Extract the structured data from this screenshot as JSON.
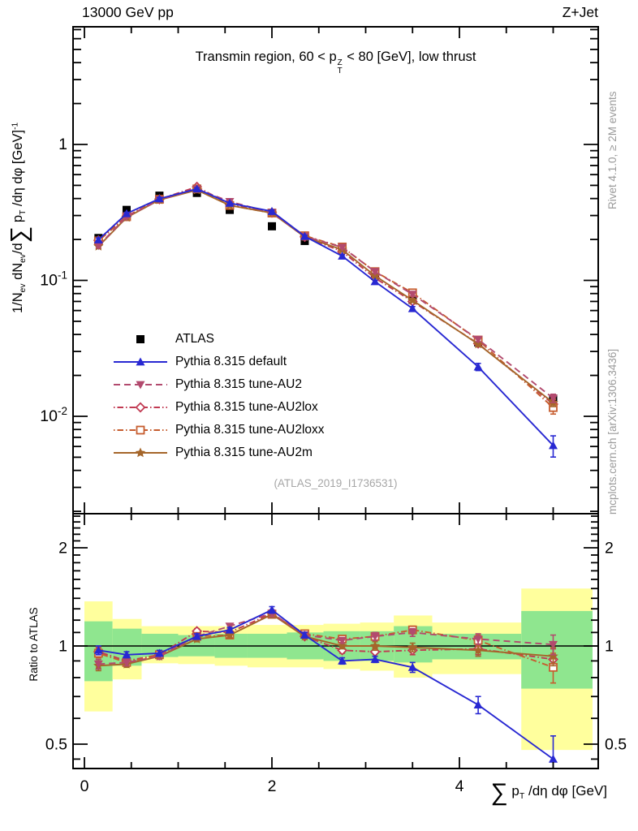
{
  "chart_data": {
    "type": "line",
    "title_text": "Transmin region, 60 < pTZ < 80 [GeV], low thrust",
    "header_left": "13000 GeV pp",
    "header_right": "Z+Jet",
    "watermark": "(ATLAS_2019_I1736531)",
    "rivet_credit": "Rivet 4.1.0, ≥ 2M events",
    "mcplots_credit": "mcplots.cern.ch [arXiv:1306.3436]",
    "ylabel_text": "1/N_ev dN_ev/d∑ p_T /dη dφ  [GeV]^-1",
    "xlabel_text": "∑ p_T /dη dφ [GeV]",
    "ratio_ylabel": "Ratio to ATLAS",
    "labels": {
      "title_tokens": [
        {
          "t": "Transmin region, 60 < p"
        },
        {
          "stack_top": "Z",
          "stack_bottom": "T"
        },
        {
          "t": " < 80 [GeV], low thrust"
        }
      ],
      "ylabel_tokens": [
        {
          "t": "1/N"
        },
        {
          "sub": "ev"
        },
        {
          "t": " dN"
        },
        {
          "sub": "ev"
        },
        {
          "t": "/d"
        },
        {
          "big": "∑"
        },
        {
          "t": " p"
        },
        {
          "sub": "T"
        },
        {
          "t": " /dη dφ  [GeV]"
        },
        {
          "sup": "-1"
        }
      ],
      "xlabel_tokens": [
        {
          "big": "∑"
        },
        {
          "t": " p"
        },
        {
          "sub": "T"
        },
        {
          "t": " /dη dφ [GeV]"
        }
      ]
    },
    "axes": {
      "x_range": [
        -0.12,
        5.48
      ],
      "x_ticks_major": [
        0,
        2,
        4
      ],
      "x_minor_step": 0.5,
      "y_main_range": [
        0.0019,
        7.35
      ],
      "y_main_ticks": [
        1,
        0.1,
        0.01
      ],
      "y_ratio_range": [
        0.42,
        2.54
      ],
      "y_ratio_ticks": [
        2,
        1,
        0.5
      ],
      "y_ratio_minor": [
        0.45,
        0.6,
        0.7,
        0.8,
        0.9,
        1.1,
        1.2,
        1.3,
        1.4,
        1.5,
        1.6,
        1.7,
        1.8,
        1.9,
        2.1,
        2.2,
        2.3,
        2.4,
        2.5
      ],
      "grid": false
    },
    "band_colors": {
      "yellow": "#ffff9d",
      "green": "#8fe68f"
    },
    "x": [
      0.15,
      0.45,
      0.8,
      1.2,
      1.55,
      2.0,
      2.35,
      2.75,
      3.1,
      3.5,
      4.2,
      5.0
    ],
    "series": [
      {
        "id": "atlas",
        "label": "ATLAS",
        "color": "#000000",
        "marker": "square-filled",
        "line": "none",
        "err_rel": 0.04,
        "values": [
          0.205,
          0.33,
          0.42,
          0.44,
          0.33,
          0.25,
          0.195,
          0.168,
          0.108,
          0.072,
          0.035,
          0.0135
        ],
        "ratio": null,
        "ratio_err": null
      },
      {
        "id": "default",
        "label": "Pythia 8.315 default",
        "color": "#2828d2",
        "marker": "triangle-up-filled",
        "line": "solid",
        "values": [
          0.199,
          0.31,
          0.399,
          0.471,
          0.37,
          0.322,
          0.211,
          0.151,
          0.098,
          0.062,
          0.0231,
          0.0061
        ],
        "ratio": [
          0.97,
          0.94,
          0.95,
          1.07,
          1.12,
          1.29,
          1.08,
          0.9,
          0.91,
          0.86,
          0.66,
          0.45
        ],
        "ratio_err": [
          0.03,
          0.02,
          0.02,
          0.02,
          0.02,
          0.03,
          0.02,
          0.02,
          0.02,
          0.03,
          0.04,
          0.08
        ]
      },
      {
        "id": "au2",
        "label": "Pythia 8.315 tune-AU2",
        "color": "#b24a6e",
        "marker": "triangle-down-filled",
        "line": "dashed",
        "values": [
          0.18,
          0.294,
          0.391,
          0.471,
          0.38,
          0.315,
          0.211,
          0.175,
          0.116,
          0.079,
          0.0368,
          0.0136
        ],
        "ratio": [
          0.88,
          0.89,
          0.93,
          1.07,
          1.15,
          1.26,
          1.08,
          1.04,
          1.07,
          1.1,
          1.05,
          1.01
        ],
        "ratio_err": [
          0.03,
          0.02,
          0.02,
          0.02,
          0.02,
          0.03,
          0.02,
          0.02,
          0.03,
          0.03,
          0.04,
          0.07
        ]
      },
      {
        "id": "au2lox",
        "label": "Pythia 8.315 tune-AU2lox",
        "color": "#c13a52",
        "marker": "diamond-open",
        "line": "dashdot",
        "values": [
          0.197,
          0.297,
          0.395,
          0.488,
          0.363,
          0.315,
          0.209,
          0.163,
          0.104,
          0.07,
          0.0343,
          0.0123
        ],
        "ratio": [
          0.96,
          0.9,
          0.94,
          1.11,
          1.1,
          1.26,
          1.07,
          0.97,
          0.96,
          0.97,
          0.98,
          0.91
        ],
        "ratio_err": [
          0.03,
          0.02,
          0.02,
          0.02,
          0.02,
          0.03,
          0.02,
          0.02,
          0.03,
          0.03,
          0.04,
          0.07
        ]
      },
      {
        "id": "au2loxx",
        "label": "Pythia 8.315 tune-AU2loxx",
        "color": "#c65c2e",
        "marker": "square-open",
        "line": "dashdot",
        "values": [
          0.195,
          0.294,
          0.395,
          0.471,
          0.356,
          0.313,
          0.213,
          0.176,
          0.116,
          0.081,
          0.0364,
          0.0116
        ],
        "ratio": [
          0.95,
          0.89,
          0.94,
          1.07,
          1.08,
          1.25,
          1.09,
          1.05,
          1.07,
          1.12,
          1.04,
          0.86
        ],
        "ratio_err": [
          0.03,
          0.02,
          0.02,
          0.02,
          0.02,
          0.03,
          0.02,
          0.02,
          0.03,
          0.03,
          0.04,
          0.09
        ]
      },
      {
        "id": "au2m",
        "label": "Pythia 8.315 tune-AU2m",
        "color": "#a5662a",
        "marker": "star-filled",
        "line": "solid",
        "values": [
          0.178,
          0.29,
          0.391,
          0.462,
          0.356,
          0.313,
          0.209,
          0.168,
          0.108,
          0.0713,
          0.034,
          0.0126
        ],
        "ratio": [
          0.87,
          0.88,
          0.93,
          1.05,
          1.08,
          1.25,
          1.07,
          1.0,
          1.0,
          0.99,
          0.97,
          0.93
        ],
        "ratio_err": [
          0.03,
          0.02,
          0.02,
          0.02,
          0.02,
          0.03,
          0.02,
          0.02,
          0.03,
          0.03,
          0.04,
          0.06
        ]
      }
    ],
    "bands": {
      "edges": [
        0.0,
        0.3,
        0.61,
        1.0,
        1.39,
        1.74,
        2.16,
        2.55,
        2.94,
        3.3,
        3.71,
        4.66,
        5.42
      ],
      "yellow": [
        [
          0.63,
          1.37
        ],
        [
          0.79,
          1.21
        ],
        [
          0.885,
          1.15
        ],
        [
          0.88,
          1.15
        ],
        [
          0.87,
          1.15
        ],
        [
          0.86,
          1.16
        ],
        [
          0.86,
          1.16
        ],
        [
          0.85,
          1.17
        ],
        [
          0.84,
          1.18
        ],
        [
          0.8,
          1.24
        ],
        [
          0.82,
          1.18
        ],
        [
          0.48,
          1.5
        ]
      ],
      "green": [
        [
          0.78,
          1.19
        ],
        [
          0.87,
          1.13
        ],
        [
          0.925,
          1.09
        ],
        [
          0.93,
          1.08
        ],
        [
          0.92,
          1.09
        ],
        [
          0.92,
          1.09
        ],
        [
          0.91,
          1.1
        ],
        [
          0.9,
          1.11
        ],
        [
          0.9,
          1.11
        ],
        [
          0.89,
          1.15
        ],
        [
          0.91,
          1.09
        ],
        [
          0.74,
          1.28
        ]
      ]
    }
  }
}
